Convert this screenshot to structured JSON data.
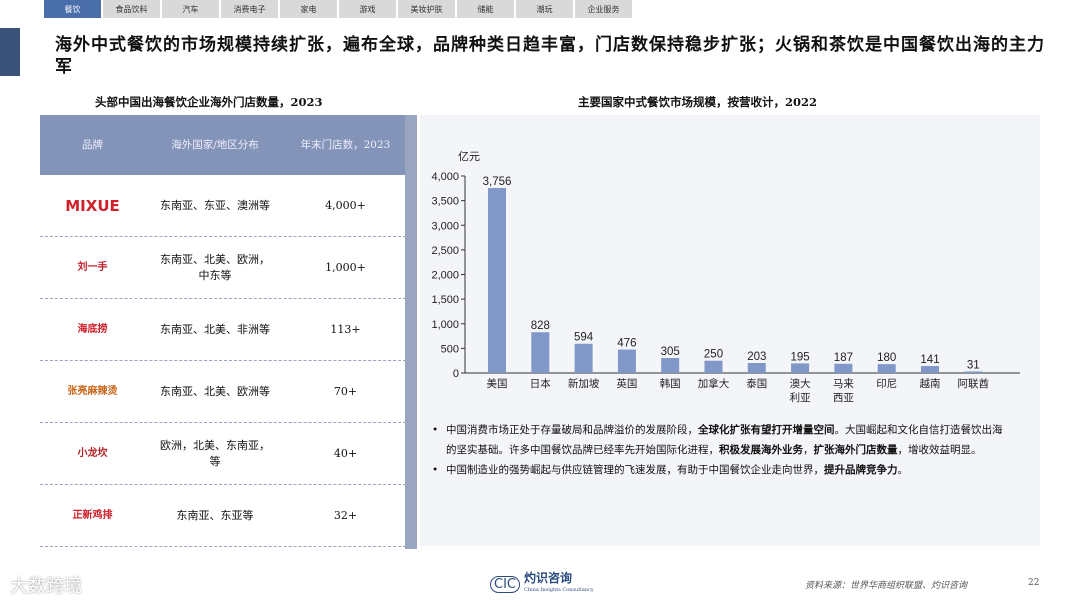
{
  "nav": {
    "tabs": [
      {
        "label": "餐饮",
        "active": true
      },
      {
        "label": "食品饮料"
      },
      {
        "label": "汽车"
      },
      {
        "label": "消费电子"
      },
      {
        "label": "家电"
      },
      {
        "label": "游戏"
      },
      {
        "label": "美妆护肤"
      },
      {
        "label": "储能"
      },
      {
        "label": "潮玩"
      },
      {
        "label": "企业服务"
      }
    ]
  },
  "title": "海外中式餐饮的市场规模持续扩张，遍布全球，品牌种类日趋丰富，门店数保持稳步扩张；火锅和茶饮是中国餐饮出海的主力军",
  "table": {
    "title": "头部中国出海餐饮企业海外门店数量，2023",
    "headers": [
      "品牌",
      "海外国家/地区分布",
      "年末门店数，2023"
    ],
    "rows": [
      {
        "brand": "MIXUE",
        "regions": "东南亚、东亚、澳洲等",
        "stores": "4,000+",
        "color": "#d0202a"
      },
      {
        "brand": "刘一手",
        "regions": "东南亚、北美、欧洲，中东等",
        "stores": "1,000+",
        "color": "#c0202a"
      },
      {
        "brand": "海底捞",
        "regions": "东南亚、北美、非洲等",
        "stores": "113+",
        "color": "#d0202a"
      },
      {
        "brand": "张亮麻辣烫",
        "regions": "东南亚、北美、欧洲等",
        "stores": "70+",
        "color": "#c8651a"
      },
      {
        "brand": "小龙坎",
        "regions": "欧洲，北美、东南亚，等",
        "stores": "40+",
        "color": "#b02020"
      },
      {
        "brand": "正新鸡排",
        "regions": "东南亚、东亚等",
        "stores": "32+",
        "color": "#d0202a"
      }
    ]
  },
  "chart_data": {
    "type": "bar",
    "title": "主要国家中式餐饮市场规模，按营收计，2022",
    "ylabel": "亿元",
    "categories": [
      "美国",
      "日本",
      "新加坡",
      "英国",
      "韩国",
      "加拿大",
      "泰国",
      "澳大利亚",
      "马来西亚",
      "印尼",
      "越南",
      "阿联酋"
    ],
    "values": [
      3756,
      828,
      594,
      476,
      305,
      250,
      203,
      195,
      187,
      180,
      141,
      31
    ],
    "value_labels": [
      "3,756",
      "828",
      "594",
      "476",
      "305",
      "250",
      "203",
      "195",
      "187",
      "180",
      "141",
      "31"
    ],
    "ylim": [
      0,
      4000
    ],
    "yticks": [
      "0",
      "500",
      "1,000",
      "1,500",
      "2,000",
      "2,500",
      "3,000",
      "3,500",
      "4,000"
    ],
    "grid": false,
    "bar_color": "#8197c7"
  },
  "notes": [
    [
      {
        "t": "中国消费市场正处于存量破局和品牌溢价的发展阶段，"
      },
      {
        "t": "全球化扩张有望打开增量空间",
        "b": true
      },
      {
        "t": "。大国崛起和文化自信打造餐饮出海的坚实基础。许多中国餐饮品牌已经率先开始国际化进程，"
      },
      {
        "t": "积极发展海外业务",
        "b": true
      },
      {
        "t": "，"
      },
      {
        "t": "扩张海外门店数量",
        "b": true
      },
      {
        "t": "，增收效益明显。"
      }
    ],
    [
      {
        "t": "中国制造业的强势崛起与供应链管理的飞速发展，有助于中国餐饮企业走向世界，"
      },
      {
        "t": "提升品牌竞争力",
        "b": true
      },
      {
        "t": "。"
      }
    ]
  ],
  "footer": {
    "source": "资料来源：世界华商组织联盟、灼识咨询",
    "page": "22",
    "logo_mark": "CIC",
    "logo_text": "灼识咨询",
    "logo_sub": "China Insights Consultancy",
    "brand": "大数跨境"
  }
}
